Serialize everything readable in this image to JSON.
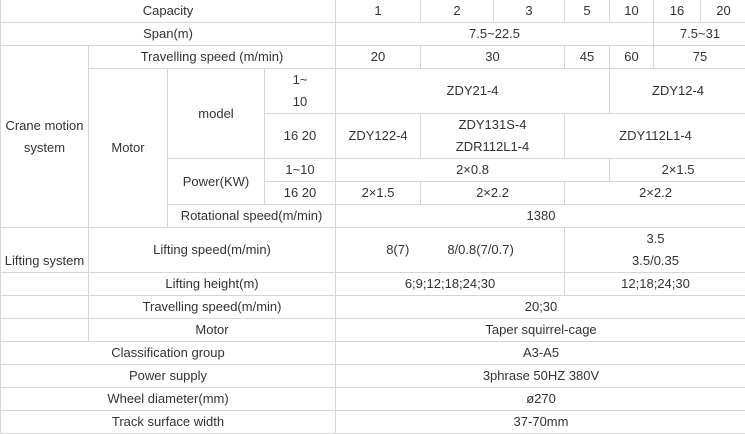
{
  "rows": {
    "capacity": {
      "label": "Capacity",
      "values": [
        "1",
        "2",
        "3",
        "5",
        "10",
        "16",
        "20"
      ]
    },
    "span": {
      "label": "Span(m)",
      "values": [
        "7.5~22.5",
        "7.5~31"
      ]
    },
    "crane_motion": {
      "label": "Crane motion system",
      "travelling_speed": {
        "label": "Travelling speed (m/min)",
        "values": [
          "20",
          "30",
          "45",
          "60",
          "75"
        ]
      },
      "motor": {
        "label": "Motor",
        "model": {
          "label": "model",
          "row1": {
            "range_lines": [
              "1~",
              "10"
            ],
            "values": [
              "ZDY21-4",
              "ZDY12-4"
            ]
          },
          "row2": {
            "range": "16 20",
            "values": [
              "ZDY122-4"
            ],
            "multi_lines": [
              "ZDY131S-4",
              "ZDR112L1-4"
            ],
            "last": "ZDY112L1-4"
          }
        },
        "power": {
          "label": "Power(KW)",
          "row1": {
            "range": "1~10",
            "values": [
              "2×0.8",
              "2×1.5"
            ]
          },
          "row2": {
            "range": "16 20",
            "values": [
              "2×1.5",
              "2×2.2",
              "2×2.2"
            ]
          }
        },
        "rotational_speed": {
          "label": "Rotational speed(m/min)",
          "value": "1380"
        }
      }
    },
    "lifting": {
      "label": "Lifting system",
      "lifting_speed": {
        "label": "Lifting speed(m/min)",
        "values": [
          "8(7)",
          "8/0.8(7/0.7)"
        ],
        "right_lines": [
          "3.5",
          "3.5/0.35"
        ]
      },
      "lifting_height": {
        "label": "Lifting height(m)",
        "values": [
          "6;9;12;18;24;30",
          "12;18;24;30"
        ]
      },
      "travelling_speed": {
        "label": "Travelling speed(m/min)",
        "value": "20;30"
      },
      "motor": {
        "label": "Motor",
        "value": "Taper squirrel-cage"
      }
    },
    "classification": {
      "label": "Classification group",
      "value": "A3-A5"
    },
    "power_supply": {
      "label": "Power supply",
      "value": "3phrase 50HZ 380V"
    },
    "wheel_diameter": {
      "label": "Wheel diameter(mm)",
      "value": "ø270"
    },
    "track_width": {
      "label": "Track surface width",
      "value": "37-70mm"
    }
  }
}
